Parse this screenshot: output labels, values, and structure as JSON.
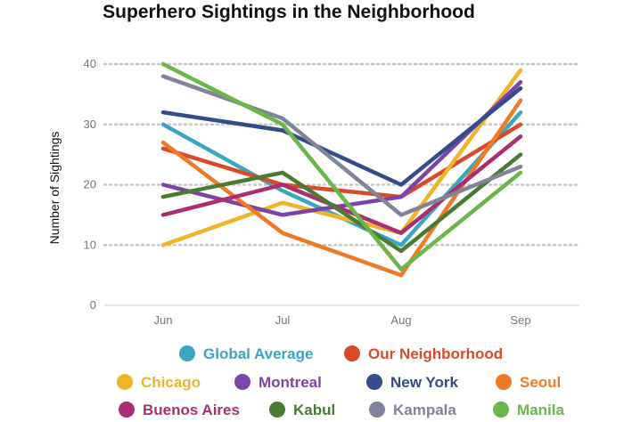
{
  "chart_data": {
    "type": "line",
    "title": "Superhero Sightings in the Neighborhood",
    "xlabel": "",
    "ylabel": "Number of Sightings",
    "categories": [
      "Jun",
      "Jul",
      "Aug",
      "Sep"
    ],
    "ylim": [
      0,
      40
    ],
    "yticks": [
      0,
      10,
      20,
      30,
      40
    ],
    "grid": "dotted horizontal",
    "legend": "bottom",
    "series": [
      {
        "name": "Global Average",
        "color": "#3aa6c0",
        "values": [
          30,
          19,
          10,
          32
        ]
      },
      {
        "name": "Our Neighborhood",
        "color": "#d84a2a",
        "values": [
          26,
          20,
          18,
          30
        ]
      },
      {
        "name": "Chicago",
        "color": "#f0b429",
        "values": [
          10,
          17,
          12,
          39
        ]
      },
      {
        "name": "Montreal",
        "color": "#7d43a8",
        "values": [
          20,
          15,
          18,
          37
        ]
      },
      {
        "name": "New York",
        "color": "#344c87",
        "values": [
          32,
          29,
          20,
          36
        ]
      },
      {
        "name": "Seoul",
        "color": "#ef7a25",
        "values": [
          27,
          12,
          5,
          34
        ]
      },
      {
        "name": "Buenos Aires",
        "color": "#a92e72",
        "values": [
          15,
          20,
          12,
          28
        ]
      },
      {
        "name": "Kabul",
        "color": "#4a7b33",
        "values": [
          18,
          22,
          9,
          25
        ]
      },
      {
        "name": "Kampala",
        "color": "#818399",
        "values": [
          38,
          31,
          15,
          23
        ]
      },
      {
        "name": "Manila",
        "color": "#6bb54a",
        "values": [
          40,
          30,
          6,
          22
        ]
      }
    ]
  }
}
